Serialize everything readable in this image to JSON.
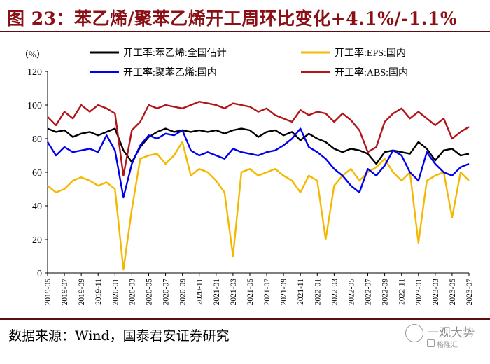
{
  "title": "图 23：苯乙烯/聚苯乙烯开工周环比变化+4.1%/-1.1%",
  "source": "数据来源：Wind，国泰君安证券研究",
  "watermark": {
    "text": "一观大势",
    "sub": "格隆汇"
  },
  "chart_data": {
    "type": "line",
    "y_unit": "（%）",
    "ylim": [
      0,
      120
    ],
    "yticks": [
      0,
      20,
      40,
      60,
      80,
      100,
      120
    ],
    "xlim": [
      "2019-05",
      "2023-07"
    ],
    "xticks": [
      "2019-05",
      "2019-07",
      "2019-09",
      "2019-11",
      "2020-01",
      "2020-03",
      "2020-05",
      "2020-07",
      "2020-09",
      "2020-11",
      "2021-01",
      "2021-03",
      "2021-05",
      "2021-07",
      "2021-09",
      "2021-11",
      "2022-01",
      "2022-03",
      "2022-05",
      "2022-07",
      "2022-09",
      "2022-11",
      "2023-01",
      "2023-03",
      "2023-05",
      "2023-07"
    ],
    "legend_position": "top",
    "grid": false,
    "series": [
      {
        "name": "开工率:苯乙烯:全国估计",
        "color": "#000000",
        "points": [
          [
            "2019-05",
            86
          ],
          [
            "2019-06",
            84
          ],
          [
            "2019-07",
            85
          ],
          [
            "2019-08",
            81
          ],
          [
            "2019-09",
            83
          ],
          [
            "2019-10",
            84
          ],
          [
            "2019-11",
            82
          ],
          [
            "2019-12",
            84
          ],
          [
            "2020-01",
            86
          ],
          [
            "2020-02",
            73
          ],
          [
            "2020-03",
            66
          ],
          [
            "2020-04",
            75
          ],
          [
            "2020-05",
            81
          ],
          [
            "2020-06",
            84
          ],
          [
            "2020-07",
            86
          ],
          [
            "2020-08",
            84
          ],
          [
            "2020-09",
            85
          ],
          [
            "2020-10",
            84
          ],
          [
            "2020-11",
            85
          ],
          [
            "2020-12",
            84
          ],
          [
            "2021-01",
            85
          ],
          [
            "2021-02",
            83
          ],
          [
            "2021-03",
            85
          ],
          [
            "2021-04",
            86
          ],
          [
            "2021-05",
            85
          ],
          [
            "2021-06",
            81
          ],
          [
            "2021-07",
            84
          ],
          [
            "2021-08",
            85
          ],
          [
            "2021-09",
            82
          ],
          [
            "2021-10",
            84
          ],
          [
            "2021-11",
            79
          ],
          [
            "2021-12",
            83
          ],
          [
            "2022-01",
            80
          ],
          [
            "2022-02",
            78
          ],
          [
            "2022-03",
            74
          ],
          [
            "2022-04",
            72
          ],
          [
            "2022-05",
            74
          ],
          [
            "2022-06",
            73
          ],
          [
            "2022-07",
            71
          ],
          [
            "2022-08",
            65
          ],
          [
            "2022-09",
            72
          ],
          [
            "2022-10",
            73
          ],
          [
            "2022-11",
            72
          ],
          [
            "2022-12",
            71
          ],
          [
            "2023-01",
            78
          ],
          [
            "2023-02",
            74
          ],
          [
            "2023-03",
            67
          ],
          [
            "2023-04",
            73
          ],
          [
            "2023-05",
            74
          ],
          [
            "2023-06",
            70
          ],
          [
            "2023-07",
            71
          ]
        ]
      },
      {
        "name": "开工率:EPS:国内",
        "color": "#f5b800",
        "points": [
          [
            "2019-05",
            52
          ],
          [
            "2019-06",
            48
          ],
          [
            "2019-07",
            50
          ],
          [
            "2019-08",
            55
          ],
          [
            "2019-09",
            57
          ],
          [
            "2019-10",
            55
          ],
          [
            "2019-11",
            52
          ],
          [
            "2019-12",
            54
          ],
          [
            "2020-01",
            50
          ],
          [
            "2020-02",
            2
          ],
          [
            "2020-03",
            38
          ],
          [
            "2020-04",
            68
          ],
          [
            "2020-05",
            70
          ],
          [
            "2020-06",
            71
          ],
          [
            "2020-07",
            65
          ],
          [
            "2020-08",
            70
          ],
          [
            "2020-09",
            78
          ],
          [
            "2020-10",
            58
          ],
          [
            "2020-11",
            62
          ],
          [
            "2020-12",
            60
          ],
          [
            "2021-01",
            55
          ],
          [
            "2021-02",
            48
          ],
          [
            "2021-03",
            10
          ],
          [
            "2021-04",
            60
          ],
          [
            "2021-05",
            62
          ],
          [
            "2021-06",
            58
          ],
          [
            "2021-07",
            60
          ],
          [
            "2021-08",
            62
          ],
          [
            "2021-09",
            58
          ],
          [
            "2021-10",
            55
          ],
          [
            "2021-11",
            48
          ],
          [
            "2021-12",
            58
          ],
          [
            "2022-01",
            55
          ],
          [
            "2022-02",
            20
          ],
          [
            "2022-03",
            52
          ],
          [
            "2022-04",
            58
          ],
          [
            "2022-05",
            62
          ],
          [
            "2022-06",
            55
          ],
          [
            "2022-07",
            60
          ],
          [
            "2022-08",
            63
          ],
          [
            "2022-09",
            68
          ],
          [
            "2022-10",
            60
          ],
          [
            "2022-11",
            55
          ],
          [
            "2022-12",
            60
          ],
          [
            "2023-01",
            18
          ],
          [
            "2023-02",
            55
          ],
          [
            "2023-03",
            58
          ],
          [
            "2023-04",
            60
          ],
          [
            "2023-05",
            33
          ],
          [
            "2023-06",
            60
          ],
          [
            "2023-07",
            55
          ]
        ]
      },
      {
        "name": "开工率:聚苯乙烯:国内",
        "color": "#0000ee",
        "points": [
          [
            "2019-05",
            78
          ],
          [
            "2019-06",
            70
          ],
          [
            "2019-07",
            75
          ],
          [
            "2019-08",
            72
          ],
          [
            "2019-09",
            73
          ],
          [
            "2019-10",
            74
          ],
          [
            "2019-11",
            72
          ],
          [
            "2019-12",
            82
          ],
          [
            "2020-01",
            73
          ],
          [
            "2020-02",
            45
          ],
          [
            "2020-03",
            65
          ],
          [
            "2020-04",
            76
          ],
          [
            "2020-05",
            82
          ],
          [
            "2020-06",
            80
          ],
          [
            "2020-07",
            83
          ],
          [
            "2020-08",
            82
          ],
          [
            "2020-09",
            85
          ],
          [
            "2020-10",
            73
          ],
          [
            "2020-11",
            70
          ],
          [
            "2020-12",
            72
          ],
          [
            "2021-01",
            70
          ],
          [
            "2021-02",
            68
          ],
          [
            "2021-03",
            74
          ],
          [
            "2021-04",
            72
          ],
          [
            "2021-05",
            71
          ],
          [
            "2021-06",
            70
          ],
          [
            "2021-07",
            72
          ],
          [
            "2021-08",
            73
          ],
          [
            "2021-09",
            76
          ],
          [
            "2021-10",
            80
          ],
          [
            "2021-11",
            86
          ],
          [
            "2021-12",
            75
          ],
          [
            "2022-01",
            72
          ],
          [
            "2022-02",
            68
          ],
          [
            "2022-03",
            62
          ],
          [
            "2022-04",
            58
          ],
          [
            "2022-05",
            52
          ],
          [
            "2022-06",
            48
          ],
          [
            "2022-07",
            62
          ],
          [
            "2022-08",
            58
          ],
          [
            "2022-09",
            64
          ],
          [
            "2022-10",
            73
          ],
          [
            "2022-11",
            70
          ],
          [
            "2022-12",
            60
          ],
          [
            "2023-01",
            55
          ],
          [
            "2023-02",
            72
          ],
          [
            "2023-03",
            65
          ],
          [
            "2023-04",
            60
          ],
          [
            "2023-05",
            58
          ],
          [
            "2023-06",
            63
          ],
          [
            "2023-07",
            65
          ]
        ]
      },
      {
        "name": "开工率:ABS:国内",
        "color": "#b3141b",
        "points": [
          [
            "2019-05",
            93
          ],
          [
            "2019-06",
            88
          ],
          [
            "2019-07",
            96
          ],
          [
            "2019-08",
            92
          ],
          [
            "2019-09",
            100
          ],
          [
            "2019-10",
            96
          ],
          [
            "2019-11",
            100
          ],
          [
            "2019-12",
            98
          ],
          [
            "2020-01",
            95
          ],
          [
            "2020-02",
            58
          ],
          [
            "2020-03",
            85
          ],
          [
            "2020-04",
            90
          ],
          [
            "2020-05",
            100
          ],
          [
            "2020-06",
            98
          ],
          [
            "2020-07",
            100
          ],
          [
            "2020-08",
            99
          ],
          [
            "2020-09",
            98
          ],
          [
            "2020-10",
            100
          ],
          [
            "2020-11",
            102
          ],
          [
            "2020-12",
            101
          ],
          [
            "2021-01",
            100
          ],
          [
            "2021-02",
            98
          ],
          [
            "2021-03",
            101
          ],
          [
            "2021-04",
            100
          ],
          [
            "2021-05",
            99
          ],
          [
            "2021-06",
            96
          ],
          [
            "2021-07",
            98
          ],
          [
            "2021-08",
            94
          ],
          [
            "2021-09",
            92
          ],
          [
            "2021-10",
            90
          ],
          [
            "2021-11",
            97
          ],
          [
            "2021-12",
            94
          ],
          [
            "2022-01",
            96
          ],
          [
            "2022-02",
            95
          ],
          [
            "2022-03",
            90
          ],
          [
            "2022-04",
            95
          ],
          [
            "2022-05",
            91
          ],
          [
            "2022-06",
            85
          ],
          [
            "2022-07",
            72
          ],
          [
            "2022-08",
            75
          ],
          [
            "2022-09",
            90
          ],
          [
            "2022-10",
            95
          ],
          [
            "2022-11",
            98
          ],
          [
            "2022-12",
            92
          ],
          [
            "2023-01",
            96
          ],
          [
            "2023-02",
            92
          ],
          [
            "2023-03",
            88
          ],
          [
            "2023-04",
            92
          ],
          [
            "2023-05",
            80
          ],
          [
            "2023-06",
            84
          ],
          [
            "2023-07",
            87
          ]
        ]
      }
    ]
  }
}
